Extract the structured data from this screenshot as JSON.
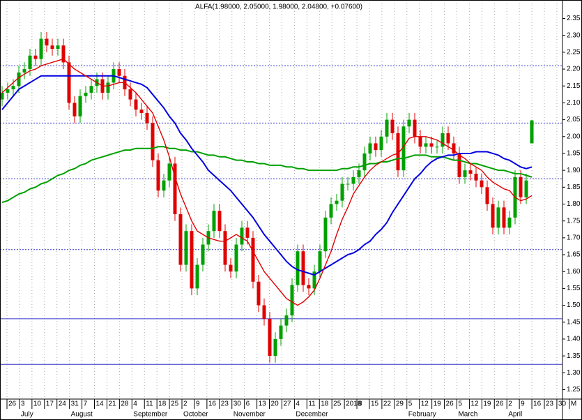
{
  "chart_data": {
    "type": "candlestick",
    "title": "ALFA(1.98000, 2.05000, 1.98000, 2.04800, +0.07600)",
    "ylim": [
      1.22,
      2.38
    ],
    "yticks": [
      1.25,
      {
        "value": 1.3,
        "label": "1.30"
      },
      1.35,
      {
        "value": 1.4,
        "label": "1.40"
      },
      1.45,
      {
        "value": 1.5,
        "label": "1.50"
      },
      1.55,
      {
        "value": 1.6,
        "label": "1.60"
      },
      1.65,
      {
        "value": 1.7,
        "label": "1.70"
      },
      1.75,
      {
        "value": 1.8,
        "label": "1.80"
      },
      1.85,
      {
        "value": 1.9,
        "label": "1.90"
      },
      1.95,
      {
        "value": 2,
        "label": "2.00"
      },
      2.05,
      {
        "value": 2.1,
        "label": "2.10"
      },
      2.15,
      {
        "value": 2.2,
        "label": "2.20"
      },
      2.25,
      {
        "value": 2.3,
        "label": "2.30"
      },
      2.35
    ],
    "weeks": [
      "26",
      "3",
      "10",
      "17",
      "24",
      "31",
      "7",
      "14",
      "21",
      "28",
      "4",
      "11",
      "18",
      "25",
      "2",
      "9",
      "16",
      "23",
      "30",
      "6",
      "13",
      "20",
      "27",
      "4",
      "11",
      "18",
      "25",
      "2018",
      "8",
      "15",
      "22",
      "29",
      "5",
      "12",
      "19",
      "26",
      "5",
      "12",
      "19",
      "26",
      "2",
      "9",
      "16",
      "23",
      "30",
      "M"
    ],
    "months": [
      null,
      "July",
      null,
      null,
      null,
      "August",
      null,
      null,
      null,
      null,
      "September",
      null,
      null,
      null,
      "October",
      null,
      null,
      null,
      "November",
      null,
      null,
      null,
      null,
      "December",
      null,
      null,
      null,
      null,
      null,
      null,
      null,
      null,
      "February",
      null,
      null,
      null,
      "March",
      null,
      null,
      null,
      "April",
      null,
      null,
      null,
      null,
      null
    ],
    "grid": true,
    "up_color": "#00a000",
    "down_color": "#e00000",
    "candles": {
      "open": [
        2.11,
        2.13,
        2.14,
        2.15,
        2.19,
        2.2,
        2.24,
        2.23,
        2.29,
        2.27,
        2.26,
        2.27,
        2.22,
        2.1,
        2.06,
        2.12,
        2.13,
        2.15,
        2.17,
        2.13,
        2.16,
        2.2,
        2.18,
        2.14,
        2.11,
        2.08,
        2.07,
        2.04,
        1.93,
        1.84,
        1.87,
        1.92,
        1.77,
        1.62,
        1.72,
        1.55,
        1.62,
        1.68,
        1.72,
        1.78,
        1.72,
        1.62,
        1.6,
        1.68,
        1.73,
        1.7,
        1.57,
        1.5,
        1.46,
        1.35,
        1.4,
        1.44,
        1.47,
        1.56,
        1.66,
        1.56,
        1.55,
        1.6,
        1.66,
        1.76,
        1.8,
        1.81,
        1.86,
        1.86,
        1.88,
        1.9,
        1.95,
        1.98,
        1.96,
        2.0,
        2.05,
        2.01,
        1.9,
        2.03,
        2.05,
        2.0,
        1.97,
        1.98,
        1.97,
        1.97,
        2.01,
        1.98,
        1.95,
        1.88,
        1.9,
        1.89,
        1.87,
        1.85,
        1.8,
        1.73,
        1.79,
        1.73,
        1.76,
        1.88,
        1.82,
        1.98
      ],
      "high": [
        2.15,
        2.16,
        2.17,
        2.21,
        2.22,
        2.26,
        2.26,
        2.31,
        2.31,
        2.29,
        2.29,
        2.29,
        2.24,
        2.12,
        2.14,
        2.15,
        2.17,
        2.19,
        2.19,
        2.18,
        2.22,
        2.22,
        2.2,
        2.16,
        2.13,
        2.1,
        2.09,
        2.06,
        1.95,
        1.89,
        1.94,
        1.94,
        1.79,
        1.74,
        1.74,
        1.64,
        1.7,
        1.74,
        1.8,
        1.8,
        1.74,
        1.64,
        1.7,
        1.75,
        1.75,
        1.72,
        1.59,
        1.52,
        1.48,
        1.42,
        1.46,
        1.49,
        1.58,
        1.68,
        1.68,
        1.58,
        1.62,
        1.68,
        1.78,
        1.82,
        1.83,
        1.88,
        1.88,
        1.9,
        1.92,
        1.97,
        2.0,
        2.0,
        2.02,
        2.07,
        2.07,
        2.03,
        2.05,
        2.07,
        2.07,
        2.02,
        2.0,
        2.0,
        1.99,
        2.03,
        2.03,
        2.0,
        1.97,
        1.92,
        1.92,
        1.91,
        1.89,
        1.87,
        1.82,
        1.81,
        1.81,
        1.78,
        1.9,
        1.9,
        1.89,
        2.05
      ],
      "low": [
        2.09,
        2.11,
        2.12,
        2.13,
        2.17,
        2.18,
        2.21,
        2.21,
        2.25,
        2.24,
        2.24,
        2.2,
        2.08,
        2.04,
        2.04,
        2.1,
        2.11,
        2.13,
        2.11,
        2.11,
        2.14,
        2.16,
        2.12,
        2.09,
        2.06,
        2.05,
        2.02,
        1.91,
        1.82,
        1.82,
        1.85,
        1.75,
        1.6,
        1.6,
        1.53,
        1.53,
        1.6,
        1.66,
        1.7,
        1.7,
        1.6,
        1.58,
        1.58,
        1.66,
        1.68,
        1.55,
        1.48,
        1.44,
        1.33,
        1.33,
        1.38,
        1.42,
        1.45,
        1.54,
        1.54,
        1.53,
        1.53,
        1.58,
        1.64,
        1.74,
        1.78,
        1.79,
        1.84,
        1.84,
        1.86,
        1.88,
        1.93,
        1.94,
        1.94,
        1.98,
        1.99,
        1.88,
        1.88,
        2.01,
        1.98,
        1.95,
        1.95,
        1.95,
        1.95,
        1.95,
        1.96,
        1.93,
        1.86,
        1.86,
        1.87,
        1.85,
        1.83,
        1.78,
        1.71,
        1.71,
        1.71,
        1.71,
        1.74,
        1.8,
        1.8,
        1.98
      ],
      "close": [
        2.13,
        2.14,
        2.15,
        2.19,
        2.2,
        2.24,
        2.23,
        2.29,
        2.27,
        2.26,
        2.27,
        2.22,
        2.1,
        2.06,
        2.12,
        2.13,
        2.15,
        2.17,
        2.13,
        2.16,
        2.2,
        2.18,
        2.14,
        2.11,
        2.08,
        2.07,
        2.04,
        1.93,
        1.84,
        1.87,
        1.92,
        1.77,
        1.62,
        1.72,
        1.55,
        1.62,
        1.68,
        1.72,
        1.78,
        1.72,
        1.62,
        1.6,
        1.68,
        1.73,
        1.7,
        1.57,
        1.5,
        1.46,
        1.35,
        1.4,
        1.44,
        1.47,
        1.56,
        1.66,
        1.56,
        1.55,
        1.6,
        1.66,
        1.76,
        1.8,
        1.81,
        1.86,
        1.86,
        1.88,
        1.9,
        1.95,
        1.98,
        1.96,
        2.0,
        2.05,
        2.01,
        1.9,
        2.03,
        2.05,
        2.0,
        1.97,
        1.98,
        1.97,
        1.97,
        2.01,
        1.98,
        1.95,
        1.88,
        1.9,
        1.89,
        1.87,
        1.85,
        1.8,
        1.73,
        1.79,
        1.73,
        1.76,
        1.88,
        1.82,
        1.87,
        2.048
      ]
    },
    "series": [
      {
        "color": "#00a000",
        "width": 2,
        "values": [
          1.805,
          1.81,
          1.82,
          1.83,
          1.835,
          1.845,
          1.85,
          1.86,
          1.865,
          1.875,
          1.885,
          1.89,
          1.9,
          1.905,
          1.915,
          1.92,
          1.93,
          1.935,
          1.94,
          1.945,
          1.95,
          1.955,
          1.96,
          1.96,
          1.965,
          1.965,
          1.965,
          1.965,
          1.97,
          1.97,
          1.965,
          1.965,
          1.96,
          1.96,
          1.955,
          1.955,
          1.95,
          1.945,
          1.945,
          1.94,
          1.94,
          1.935,
          1.93,
          1.93,
          1.925,
          1.925,
          1.92,
          1.92,
          1.915,
          1.915,
          1.915,
          1.91,
          1.91,
          1.905,
          1.905,
          1.9,
          1.9,
          1.9,
          1.9,
          1.9,
          1.9,
          1.905,
          1.905,
          1.91,
          1.91,
          1.915,
          1.92,
          1.92,
          1.925,
          1.925,
          1.93,
          1.935,
          1.935,
          1.94,
          1.945,
          1.945,
          1.945,
          1.94,
          1.94,
          1.94,
          1.935,
          1.93,
          1.93,
          1.925,
          1.92,
          1.92,
          1.915,
          1.91,
          1.905,
          1.9,
          1.9,
          1.895,
          1.89,
          1.89,
          1.885,
          1.88
        ]
      },
      {
        "color": "#0000e0",
        "width": 2,
        "values": [
          2.08,
          2.1,
          2.12,
          2.14,
          2.15,
          2.16,
          2.17,
          2.18,
          2.18,
          2.18,
          2.18,
          2.18,
          2.18,
          2.18,
          2.18,
          2.18,
          2.18,
          2.18,
          2.18,
          2.18,
          2.18,
          2.175,
          2.17,
          2.165,
          2.16,
          2.155,
          2.145,
          2.125,
          2.105,
          2.085,
          2.06,
          2.04,
          2.01,
          1.99,
          1.965,
          1.945,
          1.925,
          1.9,
          1.885,
          1.87,
          1.855,
          1.84,
          1.82,
          1.8,
          1.78,
          1.76,
          1.735,
          1.71,
          1.69,
          1.67,
          1.65,
          1.63,
          1.615,
          1.605,
          1.6,
          1.595,
          1.59,
          1.6,
          1.61,
          1.62,
          1.63,
          1.64,
          1.65,
          1.655,
          1.665,
          1.68,
          1.69,
          1.71,
          1.725,
          1.745,
          1.775,
          1.8,
          1.825,
          1.85,
          1.875,
          1.89,
          1.91,
          1.925,
          1.935,
          1.94,
          1.945,
          1.945,
          1.95,
          1.95,
          1.95,
          1.955,
          1.955,
          1.955,
          1.95,
          1.945,
          1.935,
          1.93,
          1.92,
          1.91,
          1.905,
          1.91
        ]
      },
      {
        "color": "#e00000",
        "width": 1.4,
        "values": [
          2.13,
          2.145,
          2.16,
          2.175,
          2.185,
          2.195,
          2.2,
          2.21,
          2.215,
          2.22,
          2.225,
          2.23,
          2.215,
          2.2,
          2.19,
          2.18,
          2.17,
          2.16,
          2.15,
          2.15,
          2.155,
          2.16,
          2.16,
          2.145,
          2.13,
          2.11,
          2.09,
          2.07,
          2.03,
          1.99,
          1.94,
          1.88,
          1.83,
          1.79,
          1.75,
          1.72,
          1.71,
          1.7,
          1.695,
          1.69,
          1.69,
          1.7,
          1.71,
          1.7,
          1.69,
          1.66,
          1.63,
          1.6,
          1.58,
          1.56,
          1.54,
          1.52,
          1.51,
          1.5,
          1.51,
          1.525,
          1.545,
          1.58,
          1.62,
          1.66,
          1.71,
          1.755,
          1.79,
          1.83,
          1.855,
          1.88,
          1.9,
          1.915,
          1.925,
          1.935,
          1.945,
          1.95,
          1.97,
          1.995,
          2.0,
          2.0,
          2.0,
          1.995,
          1.99,
          1.98,
          1.97,
          1.96,
          1.945,
          1.935,
          1.92,
          1.91,
          1.9,
          1.88,
          1.865,
          1.855,
          1.845,
          1.84,
          1.82,
          1.81,
          1.815,
          1.825
        ]
      }
    ],
    "levels": [
      {
        "value": 2.21,
        "style": "dotted",
        "color": "#3333cc"
      },
      {
        "value": 2.04,
        "style": "dotted",
        "color": "#3333cc"
      },
      {
        "value": 1.875,
        "style": "dotted",
        "color": "#3333cc"
      },
      {
        "value": 1.665,
        "style": "dotted",
        "color": "#3333cc"
      },
      {
        "value": 1.46,
        "style": "solid",
        "color": "#3333cc"
      },
      {
        "value": 1.325,
        "style": "solid",
        "color": "#3333cc"
      }
    ]
  }
}
